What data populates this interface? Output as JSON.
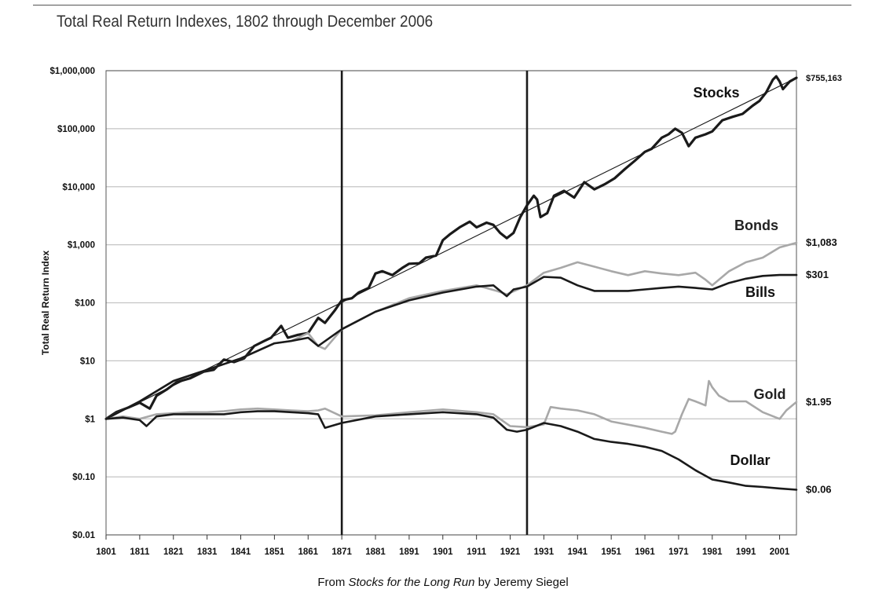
{
  "title": "Total Real Return Indexes, 1802 through December 2006",
  "caption": {
    "prefix": "From ",
    "book": "Stocks for the Long Run",
    "suffix": " by Jeremy Siegel"
  },
  "chart_data": {
    "type": "line",
    "title": "Total Real Return Indexes, 1802 through December 2006",
    "xlabel": "",
    "ylabel": "Total Real Return Index",
    "xlim": [
      1801,
      2006
    ],
    "ylim": [
      0.01,
      1000000
    ],
    "yscale": "log",
    "grid": "horizontal",
    "x_ticks": [
      "1801",
      "1811",
      "1821",
      "1831",
      "1841",
      "1851",
      "1861",
      "1871",
      "1881",
      "1891",
      "1901",
      "1911",
      "1921",
      "1931",
      "1941",
      "1951",
      "1961",
      "1971",
      "1981",
      "1991",
      "2001"
    ],
    "y_ticks": [
      {
        "value": 1000000,
        "label": "$1,000,000"
      },
      {
        "value": 100000,
        "label": "$100,000"
      },
      {
        "value": 10000,
        "label": "$10,000"
      },
      {
        "value": 1000,
        "label": "$1,000"
      },
      {
        "value": 100,
        "label": "$100"
      },
      {
        "value": 10,
        "label": "$10"
      },
      {
        "value": 1,
        "label": "$1"
      },
      {
        "value": 0.1,
        "label": "$0.10"
      },
      {
        "value": 0.01,
        "label": "$0.01"
      }
    ],
    "vertical_markers": [
      1871,
      1926
    ],
    "series": [
      {
        "name": "Stocks",
        "end_label": "$755,163",
        "color": "#1a1a1a",
        "width": 3.2,
        "x": [
          1801,
          1804,
          1808,
          1811,
          1814,
          1816,
          1819,
          1822,
          1826,
          1830,
          1833,
          1836,
          1839,
          1842,
          1845,
          1848,
          1850,
          1853,
          1855,
          1858,
          1861,
          1864,
          1866,
          1869,
          1871,
          1874,
          1876,
          1879,
          1881,
          1883,
          1886,
          1889,
          1891,
          1894,
          1896,
          1899,
          1901,
          1903,
          1906,
          1909,
          1911,
          1914,
          1916,
          1918,
          1920,
          1922,
          1924,
          1926,
          1928,
          1929,
          1930,
          1932,
          1934,
          1937,
          1940,
          1943,
          1946,
          1949,
          1952,
          1955,
          1958,
          1961,
          1963,
          1966,
          1968,
          1970,
          1972,
          1974,
          1976,
          1979,
          1981,
          1984,
          1987,
          1990,
          1993,
          1995,
          1997,
          1999,
          2000,
          2001,
          2002,
          2004,
          2006
        ],
        "values": [
          1,
          1.3,
          1.6,
          1.9,
          1.5,
          2.5,
          3.2,
          4.3,
          5,
          6.5,
          7,
          10.5,
          9.5,
          11,
          18,
          22,
          25,
          40,
          25,
          28,
          30,
          55,
          45,
          75,
          110,
          120,
          150,
          180,
          320,
          350,
          300,
          400,
          470,
          480,
          600,
          650,
          1200,
          1500,
          2000,
          2500,
          2000,
          2400,
          2200,
          1600,
          1300,
          1600,
          3000,
          4800,
          7000,
          6000,
          3000,
          3500,
          7000,
          8500,
          6500,
          12000,
          9000,
          11000,
          14000,
          20000,
          28000,
          40000,
          45000,
          70000,
          80000,
          100000,
          85000,
          50000,
          70000,
          80000,
          90000,
          140000,
          160000,
          180000,
          250000,
          300000,
          420000,
          700000,
          800000,
          650000,
          480000,
          650000,
          755163
        ]
      },
      {
        "name": "Bonds",
        "end_label": "$1,083",
        "color": "#a8a8a8",
        "width": 2.6,
        "x": [
          1801,
          1811,
          1821,
          1831,
          1841,
          1851,
          1856,
          1861,
          1864,
          1866,
          1871,
          1881,
          1891,
          1901,
          1911,
          1917,
          1920,
          1926,
          1931,
          1936,
          1941,
          1946,
          1951,
          1956,
          1961,
          1966,
          1971,
          1976,
          1979,
          1981,
          1986,
          1991,
          1996,
          2001,
          2006
        ],
        "values": [
          1,
          2,
          4.5,
          7,
          11,
          20,
          22,
          30,
          18,
          16,
          35,
          70,
          120,
          160,
          200,
          160,
          140,
          200,
          330,
          400,
          500,
          420,
          350,
          300,
          350,
          320,
          300,
          330,
          250,
          200,
          350,
          500,
          600,
          900,
          1083
        ]
      },
      {
        "name": "Bills",
        "end_label": "$301",
        "color": "#1a1a1a",
        "width": 2.6,
        "x": [
          1801,
          1811,
          1821,
          1831,
          1841,
          1851,
          1856,
          1861,
          1864,
          1871,
          1881,
          1891,
          1901,
          1911,
          1916,
          1920,
          1922,
          1926,
          1931,
          1936,
          1941,
          1946,
          1951,
          1956,
          1961,
          1966,
          1971,
          1976,
          1981,
          1986,
          1991,
          1996,
          2001,
          2006
        ],
        "values": [
          1,
          2,
          4.5,
          7,
          11,
          20,
          22,
          25,
          18,
          35,
          70,
          110,
          150,
          190,
          200,
          130,
          170,
          190,
          280,
          270,
          200,
          160,
          160,
          160,
          170,
          180,
          190,
          180,
          170,
          220,
          260,
          290,
          301,
          301
        ]
      },
      {
        "name": "Gold",
        "end_label": "$1.95",
        "color": "#a8a8a8",
        "width": 2.6,
        "x": [
          1801,
          1806,
          1811,
          1816,
          1821,
          1826,
          1831,
          1836,
          1841,
          1846,
          1851,
          1856,
          1861,
          1864,
          1866,
          1871,
          1881,
          1891,
          1901,
          1911,
          1916,
          1921,
          1926,
          1931,
          1933,
          1936,
          1941,
          1946,
          1951,
          1961,
          1966,
          1969,
          1970,
          1972,
          1974,
          1976,
          1979,
          1980,
          1981,
          1983,
          1986,
          1991,
          1996,
          2001,
          2003,
          2006
        ],
        "values": [
          1,
          1.1,
          1,
          1.2,
          1.25,
          1.3,
          1.3,
          1.35,
          1.45,
          1.5,
          1.45,
          1.4,
          1.35,
          1.4,
          1.5,
          1.1,
          1.15,
          1.3,
          1.45,
          1.3,
          1.2,
          0.75,
          0.72,
          0.8,
          1.6,
          1.5,
          1.4,
          1.2,
          0.9,
          0.7,
          0.6,
          0.55,
          0.6,
          1.2,
          2.2,
          2,
          1.7,
          4.5,
          3.5,
          2.5,
          2,
          2,
          1.3,
          1,
          1.4,
          1.95
        ]
      },
      {
        "name": "Dollar",
        "end_label": "$0.06",
        "color": "#1a1a1a",
        "width": 2.6,
        "x": [
          1801,
          1806,
          1811,
          1813,
          1816,
          1821,
          1826,
          1831,
          1836,
          1841,
          1846,
          1851,
          1856,
          1861,
          1864,
          1866,
          1871,
          1881,
          1891,
          1901,
          1911,
          1916,
          1920,
          1923,
          1926,
          1931,
          1936,
          1941,
          1946,
          1951,
          1956,
          1961,
          1966,
          1971,
          1976,
          1981,
          1986,
          1991,
          1996,
          2001,
          2006
        ],
        "values": [
          1,
          1.05,
          0.95,
          0.75,
          1.1,
          1.2,
          1.2,
          1.2,
          1.2,
          1.3,
          1.35,
          1.35,
          1.3,
          1.25,
          1.2,
          0.7,
          0.85,
          1.1,
          1.2,
          1.3,
          1.2,
          1.05,
          0.65,
          0.6,
          0.65,
          0.85,
          0.75,
          0.6,
          0.45,
          0.4,
          0.37,
          0.33,
          0.28,
          0.2,
          0.13,
          0.09,
          0.08,
          0.07,
          0.067,
          0.063,
          0.06
        ]
      },
      {
        "name": "trend",
        "color": "#1a1a1a",
        "width": 1.2,
        "x": [
          1801,
          2006
        ],
        "values": [
          1,
          755163
        ]
      }
    ],
    "series_labels": [
      {
        "text": "Stocks",
        "x": 1870,
        "y": 430000
      },
      {
        "text": "Bonds",
        "x": 1860,
        "y": 2400
      },
      {
        "text": "Bills",
        "x": 1860,
        "y": 70
      },
      {
        "text": "Gold",
        "x": 1850,
        "y": 4.2
      },
      {
        "text": "Dollar",
        "x": 1850,
        "y": 0.45
      }
    ]
  }
}
